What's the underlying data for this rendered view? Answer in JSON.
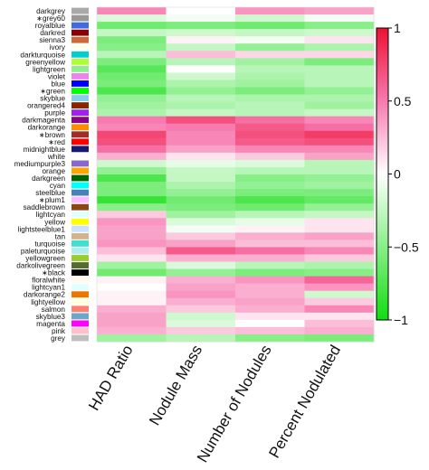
{
  "chart_data": {
    "type": "heatmap",
    "columns": [
      "HAD Ratio",
      "Nodule Mass",
      "Number of Nodules",
      "Percent Nodulated"
    ],
    "rows": [
      {
        "label": "darkgrey",
        "color": "#a9a9a9",
        "starred": false,
        "values": [
          0.45,
          0.0,
          0.4,
          0.35
        ]
      },
      {
        "label": "grey60",
        "color": "#999999",
        "starred": true,
        "values": [
          -0.15,
          -0.05,
          -0.2,
          -0.05
        ]
      },
      {
        "label": "royalblue",
        "color": "#4169e1",
        "starred": false,
        "values": [
          -0.6,
          -0.55,
          -0.6,
          -0.5
        ]
      },
      {
        "label": "darkred",
        "color": "#8b0000",
        "starred": false,
        "values": [
          -0.25,
          -0.2,
          -0.25,
          -0.2
        ]
      },
      {
        "label": "sienna3",
        "color": "#cd6839",
        "starred": false,
        "values": [
          -0.55,
          0.05,
          -0.05,
          0.1
        ]
      },
      {
        "label": "ivory",
        "color": "#fffff0",
        "starred": false,
        "values": [
          -0.5,
          -0.25,
          -0.45,
          -0.35
        ]
      },
      {
        "label": "darkturquoise",
        "color": "#00ced1",
        "starred": false,
        "values": [
          -0.3,
          0.25,
          0.15,
          0.15
        ]
      },
      {
        "label": "greenyellow",
        "color": "#adff2f",
        "starred": false,
        "values": [
          -0.55,
          -0.3,
          -0.4,
          -0.55
        ]
      },
      {
        "label": "lightgreen",
        "color": "#90ee90",
        "starred": false,
        "values": [
          -0.7,
          0.0,
          -0.3,
          -0.3
        ]
      },
      {
        "label": "violet",
        "color": "#ee82ee",
        "starred": false,
        "values": [
          -0.6,
          -0.2,
          -0.35,
          -0.3
        ]
      },
      {
        "label": "blue",
        "color": "#0000ff",
        "starred": false,
        "values": [
          -0.55,
          -0.35,
          -0.4,
          -0.3
        ]
      },
      {
        "label": "green",
        "color": "#00ff00",
        "starred": true,
        "values": [
          -0.75,
          -0.45,
          -0.55,
          -0.45
        ]
      },
      {
        "label": "skyblue",
        "color": "#87ceeb",
        "starred": false,
        "values": [
          -0.45,
          -0.3,
          -0.35,
          -0.35
        ]
      },
      {
        "label": "orangered4",
        "color": "#8b2500",
        "starred": false,
        "values": [
          -0.4,
          -0.35,
          -0.3,
          -0.4
        ]
      },
      {
        "label": "purple",
        "color": "#a020f0",
        "starred": false,
        "values": [
          -0.35,
          -0.25,
          -0.3,
          -0.25
        ]
      },
      {
        "label": "darkmagenta",
        "color": "#8b008b",
        "starred": false,
        "values": [
          0.5,
          0.7,
          0.55,
          0.45
        ]
      },
      {
        "label": "darkorange",
        "color": "#ff8c00",
        "starred": false,
        "values": [
          0.45,
          0.5,
          0.65,
          0.55
        ]
      },
      {
        "label": "brown",
        "color": "#a52a2a",
        "starred": true,
        "values": [
          0.75,
          0.45,
          0.7,
          0.8
        ]
      },
      {
        "label": "red",
        "color": "#ff0000",
        "starred": true,
        "values": [
          0.7,
          0.45,
          0.65,
          0.7
        ]
      },
      {
        "label": "midnightblue",
        "color": "#191970",
        "starred": false,
        "values": [
          0.55,
          0.35,
          0.45,
          0.45
        ]
      },
      {
        "label": "white",
        "color": "#ffffff",
        "starred": false,
        "values": [
          0.3,
          0.1,
          0.2,
          0.35
        ]
      },
      {
        "label": "mediumpurple3",
        "color": "#8968cd",
        "starred": false,
        "values": [
          -0.2,
          -0.1,
          -0.15,
          -0.3
        ]
      },
      {
        "label": "orange",
        "color": "#ffa500",
        "starred": false,
        "values": [
          -0.45,
          -0.25,
          -0.3,
          -0.3
        ]
      },
      {
        "label": "darkgreen",
        "color": "#006400",
        "starred": false,
        "values": [
          -0.75,
          -0.25,
          -0.5,
          -0.45
        ]
      },
      {
        "label": "cyan",
        "color": "#00ffff",
        "starred": false,
        "values": [
          -0.55,
          -0.35,
          -0.45,
          -0.4
        ]
      },
      {
        "label": "steelblue",
        "color": "#4682b4",
        "starred": false,
        "values": [
          -0.55,
          -0.45,
          -0.55,
          -0.55
        ]
      },
      {
        "label": "plum1",
        "color": "#ffbbff",
        "starred": true,
        "values": [
          -0.85,
          -0.6,
          -0.75,
          -0.65
        ]
      },
      {
        "label": "saddlebrown",
        "color": "#8b4513",
        "starred": false,
        "values": [
          -0.5,
          -0.55,
          -0.6,
          -0.45
        ]
      },
      {
        "label": "lightcyan",
        "color": "#e0ffff",
        "starred": false,
        "values": [
          0.2,
          -0.4,
          -0.3,
          -0.25
        ]
      },
      {
        "label": "yellow",
        "color": "#ffff00",
        "starred": false,
        "values": [
          0.4,
          -0.15,
          -0.1,
          0.1
        ]
      },
      {
        "label": "lightsteelblue1",
        "color": "#cae1ff",
        "starred": false,
        "values": [
          0.35,
          -0.05,
          0.05,
          0.1
        ]
      },
      {
        "label": "tan",
        "color": "#d2b48c",
        "starred": false,
        "values": [
          0.35,
          0.2,
          0.3,
          0.35
        ]
      },
      {
        "label": "turquoise",
        "color": "#40e0d0",
        "starred": false,
        "values": [
          0.4,
          0.35,
          0.25,
          0.25
        ]
      },
      {
        "label": "paleturquoise",
        "color": "#afeeee",
        "starred": false,
        "values": [
          0.25,
          0.65,
          0.55,
          0.45
        ]
      },
      {
        "label": "yellowgreen",
        "color": "#9acd32",
        "starred": false,
        "values": [
          0.1,
          0.3,
          0.3,
          0.2
        ]
      },
      {
        "label": "darkolivegreen",
        "color": "#556b2f",
        "starred": false,
        "values": [
          -0.4,
          -0.15,
          -0.3,
          -0.35
        ]
      },
      {
        "label": "black",
        "color": "#000000",
        "starred": true,
        "values": [
          -0.6,
          -0.45,
          -0.55,
          -0.5
        ]
      },
      {
        "label": "floralwhite",
        "color": "#fffaf0",
        "starred": false,
        "values": [
          0.05,
          0.3,
          0.4,
          0.6
        ]
      },
      {
        "label": "lightcyan1",
        "color": "#e0ffff",
        "starred": false,
        "values": [
          0.0,
          0.35,
          0.3,
          0.4
        ]
      },
      {
        "label": "darkorange2",
        "color": "#ee7600",
        "starred": false,
        "values": [
          0.05,
          0.4,
          0.3,
          -0.2
        ]
      },
      {
        "label": "lightyellow",
        "color": "#ffffe0",
        "starred": false,
        "values": [
          0.05,
          0.3,
          0.35,
          0.2
        ]
      },
      {
        "label": "salmon",
        "color": "#fa8072",
        "starred": false,
        "values": [
          0.3,
          0.2,
          0.3,
          0.45
        ]
      },
      {
        "label": "skyblue3",
        "color": "#6ca6cd",
        "starred": false,
        "values": [
          0.35,
          -0.2,
          0.1,
          0.1
        ]
      },
      {
        "label": "magenta",
        "color": "#ff00ff",
        "starred": false,
        "values": [
          0.35,
          -0.15,
          0.0,
          0.25
        ]
      },
      {
        "label": "pink",
        "color": "#ffc0cb",
        "starred": false,
        "values": [
          0.3,
          0.2,
          0.25,
          0.3
        ]
      },
      {
        "label": "grey",
        "color": "#bebebe",
        "starred": false,
        "values": [
          -0.4,
          -0.3,
          -0.5,
          -0.55
        ]
      }
    ],
    "colorbar": {
      "range": [
        -1,
        1
      ],
      "ticks": [
        1,
        0.5,
        0,
        -0.5,
        -1
      ],
      "tick_labels": [
        "1",
        "0.5",
        "0",
        "−0.5",
        "−1"
      ],
      "low_color": "#00ff00",
      "mid_color": "#ffffff",
      "high_color": "#ff0000"
    }
  }
}
